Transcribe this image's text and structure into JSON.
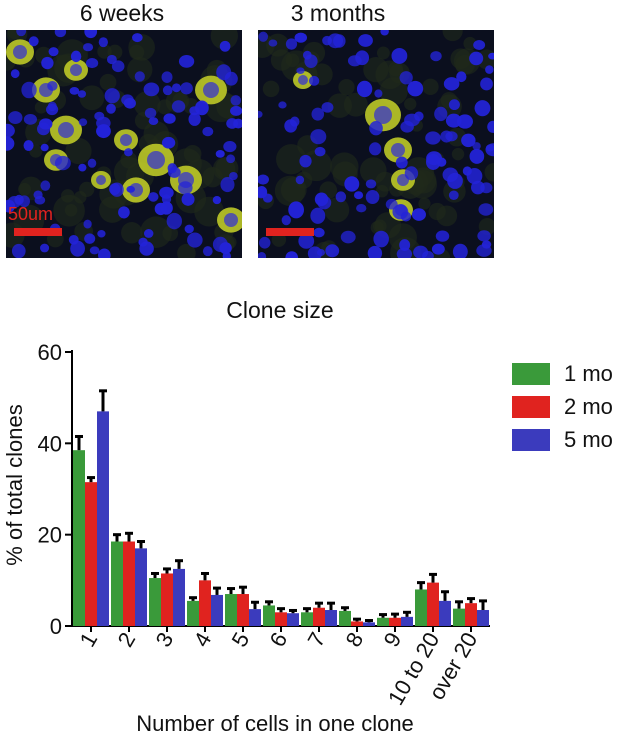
{
  "panels": [
    {
      "title": "6 weeks",
      "scale_bar_label": "50um"
    },
    {
      "title": "3 months",
      "scale_bar_label": ""
    }
  ],
  "colors": {
    "nuclei": "#2323d8",
    "cytoplasm_marker": "#c8d428",
    "scale_bar": "#e0231f",
    "series_1": "#3a9a3a",
    "series_2": "#e0231f",
    "series_3": "#3b3bbd"
  },
  "chart_data": {
    "type": "bar",
    "title": "Clone size",
    "xlabel": "Number of cells in one clone",
    "ylabel": "% of total clones",
    "ylim": [
      0,
      60
    ],
    "yticks": [
      0,
      20,
      40,
      60
    ],
    "categories": [
      "1",
      "2",
      "3",
      "4",
      "5",
      "6",
      "7",
      "8",
      "9",
      "10 to 20",
      "over 20"
    ],
    "series": [
      {
        "name": "1 mo",
        "values": [
          38.5,
          18.5,
          10.5,
          5.5,
          7.0,
          4.5,
          3.0,
          3.3,
          1.8,
          8.0,
          3.8
        ],
        "errors": [
          3.0,
          1.5,
          1.0,
          0.7,
          1.2,
          0.8,
          0.8,
          0.7,
          0.7,
          1.5,
          1.5
        ]
      },
      {
        "name": "2 mo",
        "values": [
          31.5,
          18.5,
          11.5,
          10.0,
          7.0,
          3.0,
          4.0,
          1.0,
          1.8,
          9.5,
          5.0
        ],
        "errors": [
          1.0,
          1.8,
          1.0,
          1.5,
          1.5,
          0.8,
          1.0,
          0.5,
          0.8,
          1.8,
          1.0
        ]
      },
      {
        "name": "5 mo",
        "values": [
          47.0,
          17.0,
          12.5,
          6.8,
          3.7,
          2.8,
          3.5,
          0.8,
          2.0,
          5.5,
          3.5
        ],
        "errors": [
          4.5,
          1.5,
          1.8,
          1.5,
          1.5,
          0.6,
          1.5,
          0.4,
          1.0,
          2.0,
          2.0
        ]
      }
    ],
    "legend_position": "top-right",
    "grid": false
  }
}
